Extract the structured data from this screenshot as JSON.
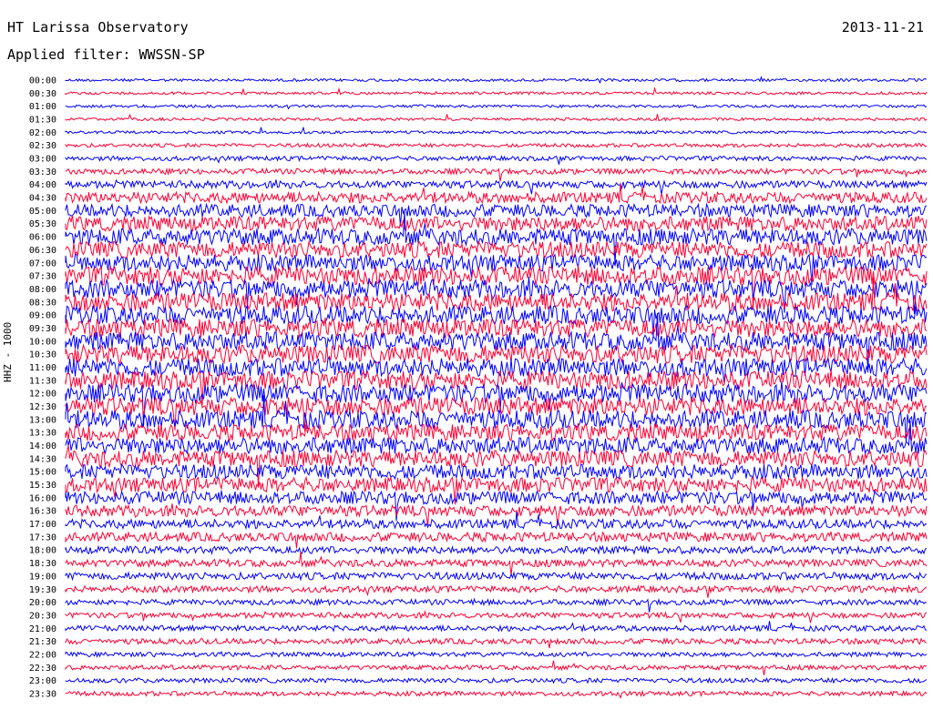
{
  "header": {
    "title": "HT Larissa Observatory",
    "date": "2013-11-21",
    "filter": "Applied filter: WWSSN-SP"
  },
  "chart_data": {
    "type": "line",
    "title": "HT Larissa Observatory",
    "subtitle": "Applied filter: WWSSN-SP",
    "ylabel": "HHZ - 1000",
    "row_labels": [
      "00:00",
      "00:30",
      "01:00",
      "01:30",
      "02:00",
      "02:30",
      "03:00",
      "03:30",
      "04:00",
      "04:30",
      "05:00",
      "05:30",
      "06:00",
      "06:30",
      "07:00",
      "07:30",
      "08:00",
      "08:30",
      "09:00",
      "09:30",
      "10:00",
      "10:30",
      "11:00",
      "11:30",
      "12:00",
      "12:30",
      "13:00",
      "13:30",
      "14:00",
      "14:30",
      "15:00",
      "15:30",
      "16:00",
      "16:30",
      "17:00",
      "17:30",
      "18:00",
      "18:30",
      "19:00",
      "19:30",
      "20:00",
      "20:30",
      "21:00",
      "21:30",
      "22:00",
      "22:30",
      "23:00",
      "23:30"
    ],
    "series_colors": [
      "#0000ff",
      "#ff0033"
    ],
    "noise_amplitude": [
      1.5,
      1.5,
      1.5,
      1.5,
      1.5,
      2,
      2.5,
      3,
      4,
      6,
      7,
      8,
      9,
      9,
      9,
      10,
      10,
      10,
      10,
      10,
      10,
      10,
      10,
      10,
      10,
      10,
      10,
      9,
      9,
      9,
      8,
      8,
      7,
      6,
      5,
      5,
      4,
      4,
      4,
      3.5,
      3,
      3,
      3,
      3,
      2.5,
      2.5,
      2.5,
      2.5
    ]
  }
}
